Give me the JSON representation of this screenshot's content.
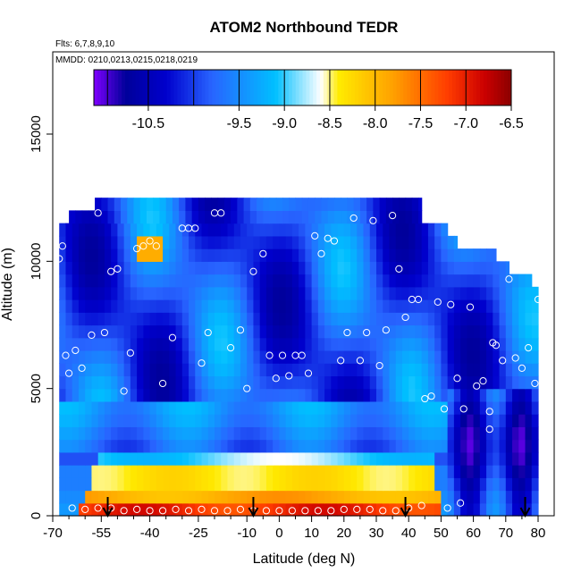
{
  "chart_data": {
    "type": "heatmap",
    "title": "ATOM2 Northbound TEDR",
    "annotations": [
      "Flts: 6,7,8,9,10",
      "MMDD: 0210,0213,0215,0218,0219"
    ],
    "xlabel": "Latitude (deg N)",
    "ylabel": "Altitude (m)",
    "xlim": [
      -70,
      85
    ],
    "ylim": [
      0,
      18000
    ],
    "x_ticks": [
      -70,
      -55,
      -40,
      -25,
      -10,
      0,
      10,
      20,
      30,
      40,
      50,
      60,
      70,
      80
    ],
    "x_ticks_minor": [
      -65,
      -60,
      -50,
      -45,
      -35,
      -30,
      -20,
      -15,
      -5,
      5,
      15,
      25,
      35,
      45,
      55,
      65,
      75,
      85
    ],
    "y_ticks": [
      0,
      5000,
      10000,
      15000
    ],
    "grid": false,
    "colorbar": {
      "placement": "top",
      "range": [
        -11.1,
        -6.5
      ],
      "ticks": [
        -10.5,
        -9.5,
        -9.0,
        -8.5,
        -8.0,
        -7.5,
        -7.0,
        -6.5
      ],
      "tick_labels": [
        "-10.5",
        "-9.5",
        "-9.0",
        "-8.5",
        "-8.0",
        "-7.5",
        "-7.0",
        "-6.5"
      ],
      "segment_edges": [
        -10.95,
        -10.5,
        -10.0,
        -9.5,
        -9.0,
        -8.5,
        -8.0,
        -7.5,
        -7.0,
        -6.5
      ],
      "colors": [
        "#7f00ff",
        "#00009a",
        "#0000cd",
        "#2a64ff",
        "#00bfff",
        "#ffffff",
        "#ffe000",
        "#ffa000",
        "#ff3c00",
        "#cc0000",
        "#8b0000"
      ]
    },
    "field": {
      "description_levels": [
        0,
        500,
        1000,
        1500,
        2000,
        2500,
        3000,
        3500,
        4000,
        4500,
        5000,
        5500,
        6000,
        6500,
        7000,
        7500,
        8000,
        8500,
        9000,
        9500,
        10000,
        10500,
        11000,
        11500,
        12000
      ],
      "lat_extent_by_level": [
        [
          -68,
          80
        ],
        [
          -68,
          80
        ],
        [
          -68,
          80
        ],
        [
          -68,
          80
        ],
        [
          -68,
          80
        ],
        [
          -68,
          80
        ],
        [
          -68,
          80
        ],
        [
          -68,
          80
        ],
        [
          -68,
          80
        ],
        [
          -68,
          80
        ],
        [
          -68,
          80
        ],
        [
          -68,
          80
        ],
        [
          -68,
          80
        ],
        [
          -68,
          80
        ],
        [
          -68,
          80
        ],
        [
          -68,
          80
        ],
        [
          -68,
          80
        ],
        [
          -68,
          80
        ],
        [
          -68,
          78
        ],
        [
          -68,
          71
        ],
        [
          -68,
          67
        ],
        [
          -68,
          55
        ],
        [
          -68,
          52
        ],
        [
          -65,
          44
        ],
        [
          -57,
          44
        ]
      ]
    },
    "flight_points": {
      "x": [
        -68,
        -67,
        -66,
        -65,
        -63,
        -61,
        -58,
        -56,
        -54,
        -52,
        -50,
        -48,
        -46,
        -44,
        -42,
        -40,
        -38,
        -36,
        -33,
        -30,
        -28,
        -26,
        -24,
        -22,
        -20,
        -18,
        -15,
        -12,
        -10,
        -8,
        -5,
        -3,
        -1,
        1,
        3,
        5,
        7,
        9,
        11,
        13,
        15,
        17,
        19,
        21,
        23,
        25,
        27,
        29,
        31,
        33,
        35,
        37,
        39,
        41,
        43,
        45,
        47,
        49,
        51,
        53,
        55,
        57,
        59,
        61,
        63,
        65,
        67,
        69,
        71,
        73,
        75,
        77,
        79,
        80,
        66,
        65,
        56,
        52,
        44,
        40,
        36,
        32,
        28,
        24,
        20,
        16,
        12,
        8,
        4,
        0,
        -4,
        -8,
        -12,
        -16,
        -20,
        -24,
        -28,
        -32,
        -36,
        -40,
        -44,
        -48,
        -52,
        -56,
        -60,
        -64
      ],
      "y": [
        10100,
        10600,
        6300,
        5600,
        6500,
        5800,
        7100,
        11900,
        7200,
        9600,
        9700,
        4900,
        6400,
        10500,
        10600,
        10800,
        10600,
        5200,
        7000,
        11300,
        11300,
        11300,
        6000,
        7200,
        11900,
        11900,
        6600,
        7300,
        5000,
        9600,
        10300,
        6300,
        5400,
        6300,
        5500,
        6300,
        6300,
        5600,
        11000,
        10300,
        10900,
        10800,
        6100,
        7200,
        11700,
        6100,
        7200,
        11600,
        5900,
        7300,
        11800,
        9700,
        7800,
        8500,
        8500,
        4600,
        4700,
        8400,
        4200,
        8300,
        5400,
        4200,
        8200,
        5100,
        5300,
        4100,
        6700,
        6100,
        9300,
        6200,
        5800,
        6600,
        5200,
        8500,
        6800,
        3400,
        500,
        300,
        400,
        300,
        200,
        200,
        250,
        250,
        250,
        200,
        200,
        200,
        200,
        200,
        200,
        200,
        250,
        200,
        200,
        250,
        200,
        250,
        200,
        200,
        250,
        200,
        300,
        300,
        250,
        300
      ]
    },
    "arrows_x": [
      -53,
      -8,
      39,
      76
    ]
  }
}
